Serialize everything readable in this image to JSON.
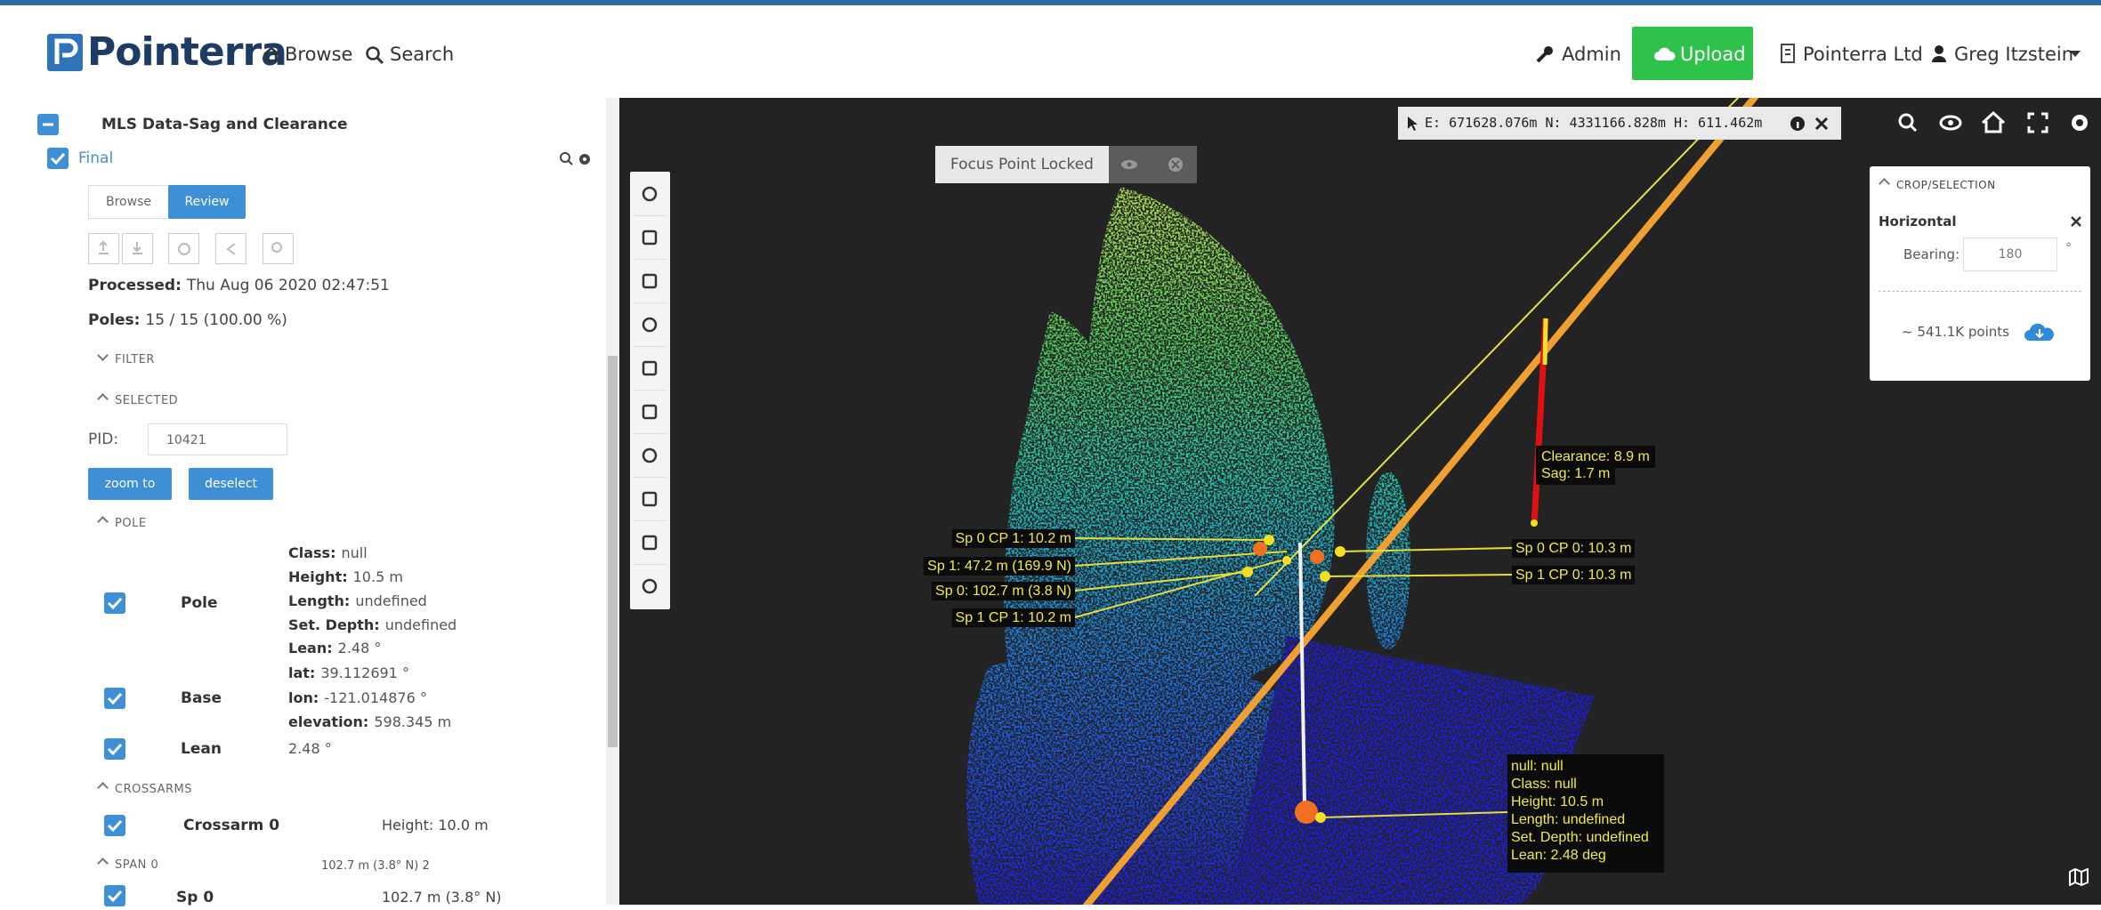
{
  "header": {
    "brand": "Pointerra",
    "nav": [
      "Browse",
      "Search"
    ],
    "admin": "Admin",
    "upload": "Upload",
    "org": "Pointerra Ltd",
    "user": "Greg Itzstein"
  },
  "sidebar": {
    "dataset": "MLS Data-Sag and Clearance",
    "layer": "Final",
    "tabs": [
      "Browse",
      "Review"
    ],
    "processed": {
      "key": "Processed:",
      "value": "Thu Aug 06 2020 02:47:51"
    },
    "poles": {
      "key": "Poles:",
      "value": "15 / 15 (100.00 %)"
    },
    "filter": "FILTER",
    "selected": "SELECTED",
    "pid": {
      "label": "PID:",
      "value": "10421"
    },
    "buttons": [
      "zoom to",
      "deselect"
    ],
    "pole_section": "POLE",
    "pole_rows": [
      {
        "name": "Pole",
        "details": [
          {
            "key": "Class:",
            "value": "null"
          },
          {
            "key": "Height:",
            "value": "10.5 m"
          },
          {
            "key": "Length:",
            "value": "undefined"
          },
          {
            "key": "Set. Depth:",
            "value": "undefined"
          },
          {
            "key": "Lean:",
            "value": "2.48 °"
          }
        ]
      },
      {
        "name": "Base",
        "details": [
          {
            "key": "lat:",
            "value": "39.112691 °"
          },
          {
            "key": "lon:",
            "value": "-121.014876 °"
          },
          {
            "key": "elevation:",
            "value": "598.345 m"
          }
        ]
      },
      {
        "name": "Lean",
        "details": [
          {
            "value": "2.48 °"
          }
        ]
      }
    ],
    "crossarms_section": "CROSSARMS",
    "crossarms": [
      {
        "name": "Crossarm 0",
        "value": "Height: 10.0 m"
      }
    ],
    "span_section": "SPAN 0",
    "span_summary": "102.7 m (3.8° N) 2",
    "spans": [
      {
        "name": "Sp 0",
        "value": "102.7 m (3.8° N)"
      }
    ]
  },
  "viewer": {
    "coords": "E: 671628.076m N: 4331166.828m H: 611.462m",
    "focus": "Focus Point Locked",
    "crop": {
      "title": "CROP/SELECTION",
      "mode": "Horizontal",
      "bearing_label": "Bearing:",
      "bearing": "180",
      "unit": "°",
      "points": "~ 541.1K points"
    },
    "clearance": [
      "Clearance: 8.9 m",
      "Sag: 1.7 m"
    ],
    "spans_left": [
      "Sp 0 CP 1: 10.2 m",
      "Sp 1: 47.2 m (169.9 N)",
      "Sp 0: 102.7 m (3.8 N)",
      "Sp 1 CP 1: 10.2 m"
    ],
    "spans_right": [
      "Sp 0 CP 0: 10.3 m",
      "Sp 1 CP 0: 10.3 m"
    ],
    "pole_info": [
      "null: null",
      "Class: null",
      "Height: 10.5 m",
      "Length: undefined",
      "Set. Depth: undefined",
      "Lean: 2.48 deg"
    ]
  }
}
